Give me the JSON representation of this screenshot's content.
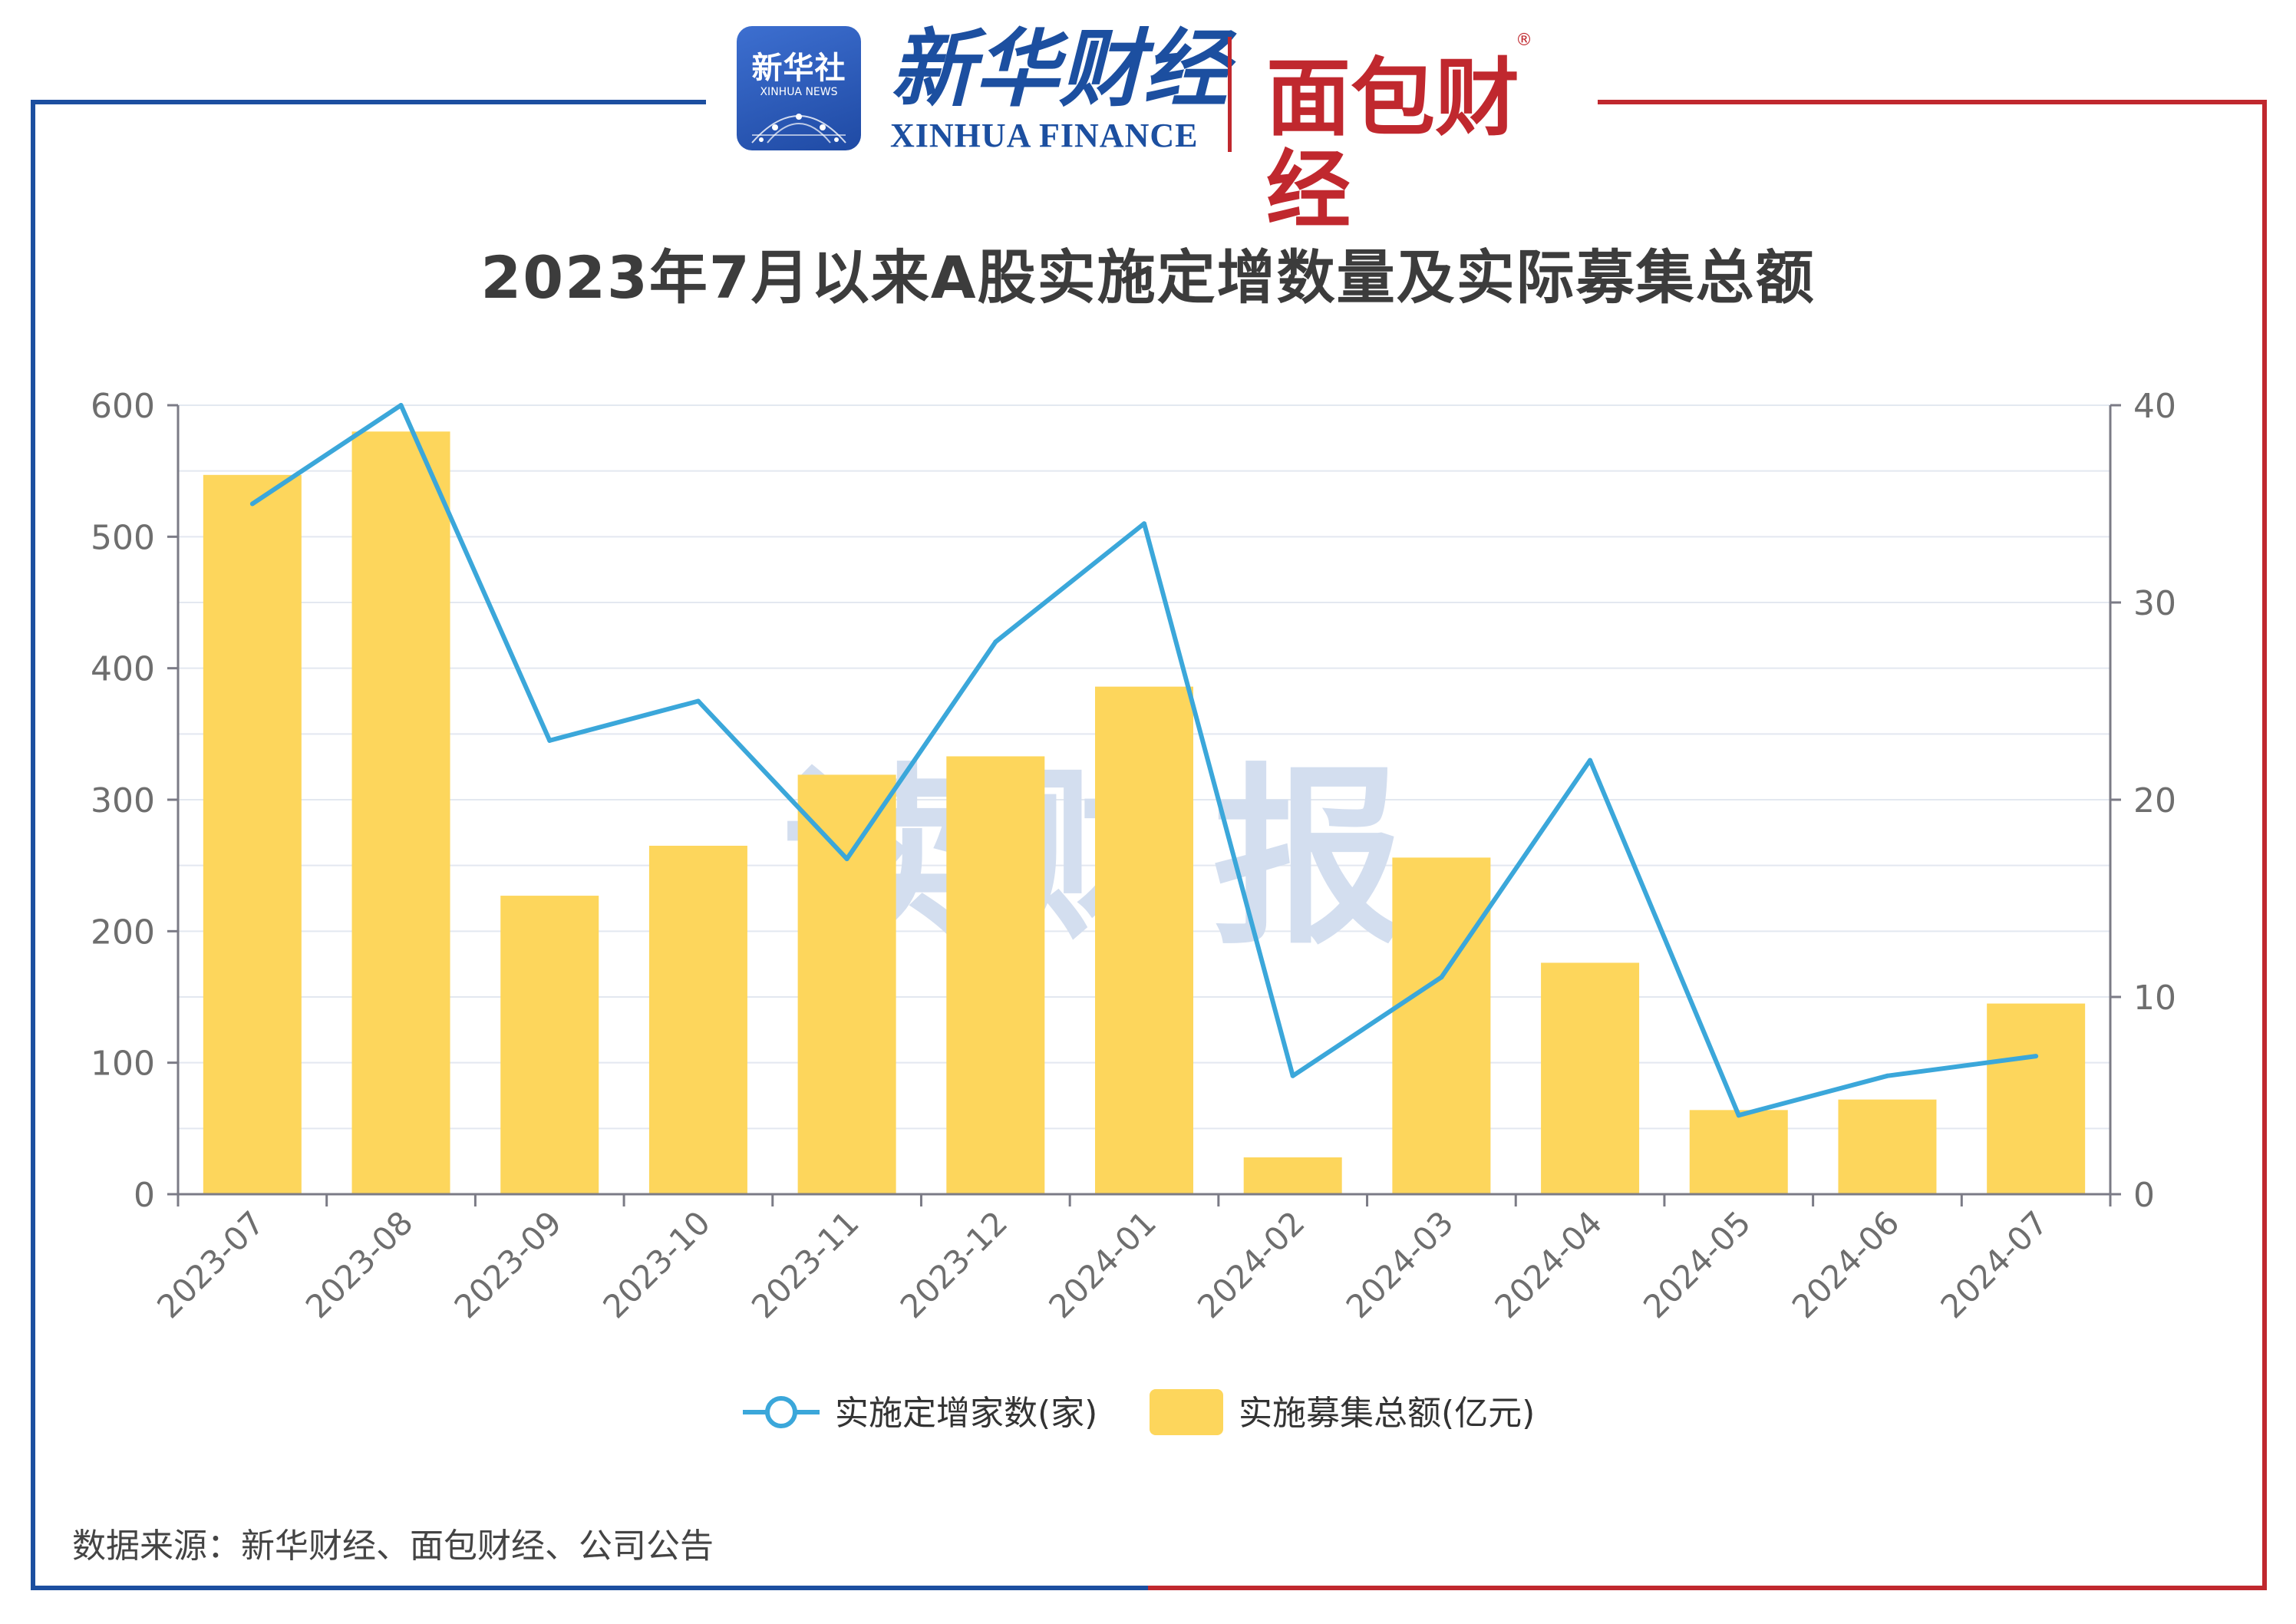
{
  "header": {
    "xinhua_logo_cn": "新华社",
    "xinhua_logo_en": "XINHUA NEWS",
    "xinhua_finance_cn": "新华财经",
    "xinhua_finance_en": "XINHUA FINANCE",
    "mianbao_finance": "面包财经",
    "registered_mark": "®"
  },
  "watermark": "读财报",
  "source": "数据来源：新华财经、面包财经、公司公告",
  "colors": {
    "frame_left": "#1c4fa0",
    "frame_right": "#c0282e",
    "bar": "#fdd65c",
    "line": "#3ba7da",
    "grid": "#e3e8f0",
    "axis": "#7b7b86",
    "tick_text": "#6e6e6e",
    "watermark": "#d3deef"
  },
  "chart_data": {
    "type": "bar",
    "title": "2023年7月以来A股实施定增数量及实际募集总额",
    "categories": [
      "2023-07",
      "2023-08",
      "2023-09",
      "2023-10",
      "2023-11",
      "2023-12",
      "2024-01",
      "2024-02",
      "2024-03",
      "2024-04",
      "2024-05",
      "2024-06",
      "2024-07"
    ],
    "series": [
      {
        "name": "实施募集总额(亿元)",
        "type": "bar",
        "axis": "left",
        "values": [
          547,
          580,
          227,
          265,
          319,
          333,
          386,
          28,
          256,
          176,
          64,
          72,
          145
        ]
      },
      {
        "name": "实施定增家数(家)",
        "type": "line",
        "axis": "right",
        "values": [
          35,
          40,
          23,
          25,
          17,
          28,
          34,
          6,
          11,
          22,
          4,
          6,
          7
        ]
      }
    ],
    "legend_order": [
      "实施定增家数(家)",
      "实施募集总额(亿元)"
    ],
    "legend_position": "bottom-center",
    "y_left": {
      "ylim": [
        0,
        600
      ],
      "ticks": [
        0,
        100,
        200,
        300,
        400,
        500,
        600
      ]
    },
    "y_right": {
      "ylim": [
        0,
        40
      ],
      "ticks": [
        0,
        10,
        20,
        30,
        40
      ]
    },
    "grid": true
  }
}
